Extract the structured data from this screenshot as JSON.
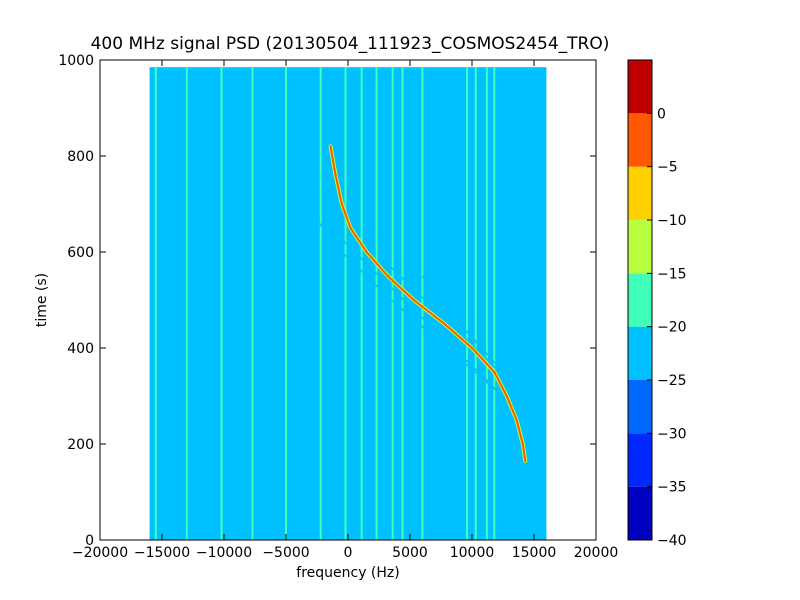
{
  "chart_data": {
    "type": "heatmap",
    "title": "400 MHz signal PSD (20130504_111923_COSMOS2454_TRO)",
    "xlabel": "frequency (Hz)",
    "ylabel": "time (s)",
    "xlim": [
      -20000,
      20000
    ],
    "ylim": [
      0,
      1000
    ],
    "xticks": [
      -20000,
      -15000,
      -10000,
      -5000,
      0,
      5000,
      10000,
      15000,
      20000
    ],
    "yticks": [
      0,
      200,
      400,
      600,
      800,
      1000
    ],
    "data_extent": {
      "x": [
        -16000,
        16000
      ],
      "y": [
        0,
        985
      ]
    },
    "background_level_db": -25,
    "colorbar": {
      "levels": [
        -40,
        -35,
        -30,
        -25,
        -20,
        -15,
        -10,
        -5,
        0
      ],
      "colors": [
        "#0000bf",
        "#0028ff",
        "#0068ff",
        "#00c0ff",
        "#40ffb8",
        "#b8ff40",
        "#ffd000",
        "#ff5800",
        "#c00000"
      ]
    },
    "vertical_tones_hz": [
      -15500,
      -13000,
      -10200,
      -7700,
      -5000,
      -2200,
      -200,
      1100,
      2300,
      3600,
      4400,
      6000,
      9600,
      10300,
      11200,
      11800
    ],
    "main_signal": {
      "level_db": -2,
      "points": [
        {
          "time": 820,
          "freq": -1400
        },
        {
          "time": 760,
          "freq": -1000
        },
        {
          "time": 700,
          "freq": -500
        },
        {
          "time": 650,
          "freq": 200
        },
        {
          "time": 600,
          "freq": 1500
        },
        {
          "time": 550,
          "freq": 3200
        },
        {
          "time": 500,
          "freq": 5300
        },
        {
          "time": 450,
          "freq": 7800
        },
        {
          "time": 400,
          "freq": 10000
        },
        {
          "time": 350,
          "freq": 11800
        },
        {
          "time": 300,
          "freq": 12800
        },
        {
          "time": 250,
          "freq": 13600
        },
        {
          "time": 200,
          "freq": 14100
        },
        {
          "time": 165,
          "freq": 14300
        }
      ]
    },
    "sidebands": [
      {
        "points": [
          {
            "time": 700,
            "freq": -3500
          },
          {
            "time": 600,
            "freq": -500
          },
          {
            "time": 500,
            "freq": 3500
          },
          {
            "time": 400,
            "freq": 8000
          },
          {
            "time": 300,
            "freq": 12500
          }
        ]
      },
      {
        "points": [
          {
            "time": 640,
            "freq": -1000
          },
          {
            "time": 550,
            "freq": 2500
          },
          {
            "time": 450,
            "freq": 6500
          },
          {
            "time": 350,
            "freq": 10500
          },
          {
            "time": 260,
            "freq": 14000
          }
        ]
      },
      {
        "points": [
          {
            "time": 580,
            "freq": 3000
          },
          {
            "time": 500,
            "freq": 6200
          },
          {
            "time": 420,
            "freq": 9500
          },
          {
            "time": 340,
            "freq": 12600
          },
          {
            "time": 260,
            "freq": 15500
          }
        ]
      },
      {
        "points": [
          {
            "time": 550,
            "freq": 6000
          },
          {
            "time": 450,
            "freq": 9000
          },
          {
            "time": 380,
            "freq": 11500
          },
          {
            "time": 300,
            "freq": 14000
          }
        ]
      }
    ]
  }
}
